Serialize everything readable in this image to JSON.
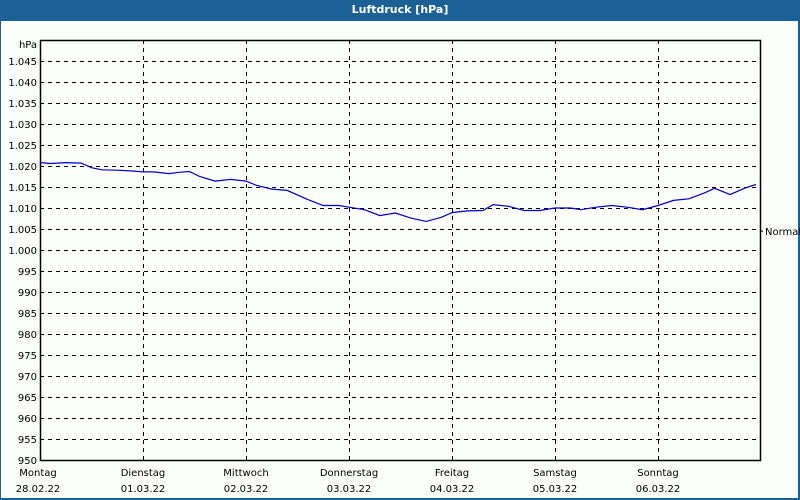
{
  "window": {
    "title": "Luftdruck [hPa]"
  },
  "chart_data": {
    "type": "line",
    "title": "Luftdruck [hPa]",
    "ylabel": "hPa",
    "xlabel": "",
    "ylim": [
      950,
      1050
    ],
    "yticks": [
      950,
      955,
      960,
      965,
      970,
      975,
      980,
      985,
      990,
      995,
      1000,
      1005,
      1010,
      1015,
      1020,
      1025,
      1030,
      1035,
      1040,
      1045
    ],
    "ytick_labels": [
      "950",
      "955",
      "960",
      "965",
      "970",
      "975",
      "980",
      "985",
      "990",
      "995",
      "1.000",
      "1.005",
      "1.010",
      "1.015",
      "1.020",
      "1.025",
      "1.030",
      "1.035",
      "1.040",
      "1.045"
    ],
    "categories": [
      {
        "day": "Montag",
        "date": "28.02.22"
      },
      {
        "day": "Dienstag",
        "date": "01.03.22"
      },
      {
        "day": "Mittwoch",
        "date": "02.03.22"
      },
      {
        "day": "Donnerstag",
        "date": "03.03.22"
      },
      {
        "day": "Freitag",
        "date": "04.03.22"
      },
      {
        "day": "Samstag",
        "date": "05.03.22"
      },
      {
        "day": "Sonntag",
        "date": "06.03.22"
      }
    ],
    "grid": true,
    "reference_line": {
      "label": "Normal",
      "value": 1004.5
    },
    "line_color": "#0000c0",
    "series": [
      {
        "name": "Luftdruck",
        "x": [
          0,
          0.1,
          0.25,
          0.4,
          0.5,
          0.6,
          0.75,
          0.9,
          1.0,
          1.1,
          1.25,
          1.35,
          1.45,
          1.55,
          1.7,
          1.85,
          2.0,
          2.1,
          2.25,
          2.4,
          2.6,
          2.75,
          2.9,
          3.0,
          3.15,
          3.3,
          3.45,
          3.6,
          3.75,
          3.9,
          4.0,
          4.15,
          4.3,
          4.4,
          4.55,
          4.7,
          4.85,
          5.0,
          5.15,
          5.25,
          5.4,
          5.55,
          5.7,
          5.85,
          6.0,
          6.15,
          6.3,
          6.45,
          6.55,
          6.7,
          6.85,
          6.95
        ],
        "values": [
          1020.8,
          1020.6,
          1020.8,
          1020.7,
          1019.6,
          1019.1,
          1019.0,
          1018.8,
          1018.6,
          1018.6,
          1018.2,
          1018.5,
          1018.7,
          1017.5,
          1016.4,
          1016.8,
          1016.4,
          1015.4,
          1014.5,
          1014.2,
          1012.0,
          1010.6,
          1010.6,
          1010.2,
          1009.6,
          1008.2,
          1008.8,
          1007.6,
          1006.8,
          1007.8,
          1008.9,
          1009.3,
          1009.4,
          1010.8,
          1010.4,
          1009.4,
          1009.4,
          1010.0,
          1010.0,
          1009.6,
          1010.2,
          1010.6,
          1010.2,
          1009.6,
          1010.6,
          1011.8,
          1012.2,
          1013.6,
          1014.7,
          1013.2,
          1014.8,
          1015.6
        ]
      }
    ]
  }
}
